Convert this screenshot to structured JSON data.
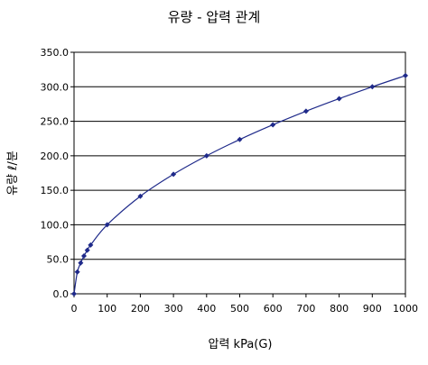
{
  "chart_data": {
    "type": "line",
    "title": "유량 - 압력 관계",
    "xlabel": "압력 kPa(G)",
    "ylabel": "유량 ℓ/분",
    "xlim": [
      0,
      1000
    ],
    "ylim": [
      0,
      350
    ],
    "x_ticks": [
      "0",
      "100",
      "200",
      "300",
      "400",
      "500",
      "600",
      "700",
      "800",
      "900",
      "1000"
    ],
    "y_ticks": [
      "0.0",
      "50.0",
      "100.0",
      "150.0",
      "200.0",
      "250.0",
      "300.0",
      "350.0"
    ],
    "grid": "horizontal",
    "series": [
      {
        "color": "#1f2a8a",
        "x": [
          0,
          10,
          20,
          30,
          40,
          50,
          100,
          200,
          300,
          400,
          500,
          600,
          700,
          800,
          900,
          1000
        ],
        "y": [
          0,
          31.6,
          44.7,
          54.8,
          63.2,
          70.7,
          100.0,
          141.4,
          173.2,
          200.0,
          223.6,
          244.9,
          264.6,
          282.8,
          300.0,
          316.2
        ]
      }
    ]
  }
}
